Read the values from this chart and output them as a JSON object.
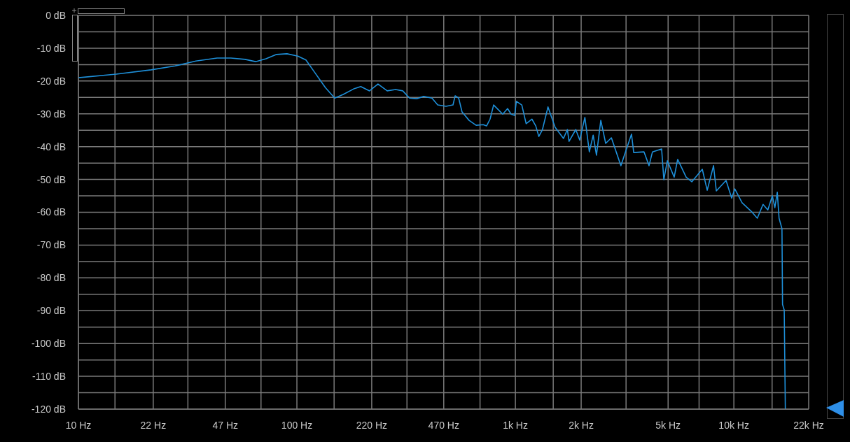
{
  "chart_data": {
    "type": "line",
    "log": "x",
    "grid": true,
    "marker": "none",
    "line_style": "solid",
    "color": "#1e8fd8",
    "x": [
      10,
      14.9,
      21.5,
      27.7,
      34.5,
      43.1,
      49.9,
      57.9,
      64.7,
      72.2,
      80.7,
      90.1,
      101,
      110,
      121,
      135,
      149,
      163,
      182,
      196,
      215,
      235,
      259,
      283,
      305,
      328,
      353,
      380,
      415,
      441,
      481,
      518,
      530,
      550,
      570,
      614,
      661,
      712,
      738,
      766,
      795,
      837,
      875,
      921,
      956,
      992,
      1010,
      1070,
      1120,
      1190,
      1240,
      1280,
      1330,
      1410,
      1520,
      1660,
      1730,
      1760,
      1890,
      1970,
      2080,
      2180,
      2270,
      2350,
      2460,
      2590,
      2750,
      3040,
      3400,
      3480,
      3880,
      4090,
      4240,
      4670,
      4780,
      4960,
      5330,
      5530,
      6050,
      6420,
      7170,
      7550,
      8070,
      8310,
      9210,
      9770,
      10100,
      10900,
      12000,
      12800,
      13600,
      14300,
      15000,
      15400,
      15800,
      16100,
      16600,
      16700,
      17000,
      17200
    ],
    "values": [
      -19.0,
      -17.9,
      -16.6,
      -15.4,
      -13.9,
      -13.0,
      -13.0,
      -13.4,
      -14.1,
      -13.2,
      -11.9,
      -11.7,
      -12.4,
      -13.6,
      -17.5,
      -22.0,
      -25.2,
      -24.1,
      -22.4,
      -21.7,
      -23.0,
      -20.9,
      -23.0,
      -22.6,
      -23.0,
      -25.2,
      -25.4,
      -24.7,
      -25.2,
      -27.3,
      -27.7,
      -27.3,
      -24.5,
      -25.2,
      -29.4,
      -32.0,
      -33.5,
      -33.3,
      -33.7,
      -31.6,
      -27.3,
      -28.8,
      -30.1,
      -28.4,
      -30.1,
      -30.5,
      -26.2,
      -27.3,
      -33.0,
      -31.6,
      -33.7,
      -36.9,
      -34.8,
      -27.9,
      -34.1,
      -37.5,
      -34.8,
      -38.4,
      -34.8,
      -38.0,
      -31.1,
      -41.6,
      -36.5,
      -42.6,
      -32.0,
      -39.0,
      -37.3,
      -45.8,
      -36.2,
      -41.8,
      -41.6,
      -45.8,
      -41.6,
      -40.7,
      -50.1,
      -44.3,
      -49.3,
      -43.9,
      -49.3,
      -50.7,
      -46.9,
      -53.3,
      -45.8,
      -53.5,
      -50.3,
      -55.7,
      -52.9,
      -57.1,
      -59.7,
      -61.8,
      -57.6,
      -59.3,
      -55.0,
      -58.6,
      -53.9,
      -61.8,
      -65.0,
      -88.1,
      -89.8,
      -120
    ],
    "xlim": [
      10,
      22000
    ],
    "xticks": [
      {
        "value": 10,
        "label": "10 Hz"
      },
      {
        "value": 14.7,
        "label": null
      },
      {
        "value": 22,
        "label": "22 Hz"
      },
      {
        "value": 31.7,
        "label": null
      },
      {
        "value": 47,
        "label": "47 Hz"
      },
      {
        "value": 68.5,
        "label": null
      },
      {
        "value": 100,
        "label": "100 Hz"
      },
      {
        "value": 148,
        "label": null
      },
      {
        "value": 220,
        "label": "220 Hz"
      },
      {
        "value": 319,
        "label": null
      },
      {
        "value": 470,
        "label": "470 Hz"
      },
      {
        "value": 689,
        "label": null
      },
      {
        "value": 1000,
        "label": "1k Hz"
      },
      {
        "value": 1490,
        "label": null
      },
      {
        "value": 2000,
        "label": "2k Hz"
      },
      {
        "value": 3210,
        "label": null
      },
      {
        "value": 5000,
        "label": "5k Hz"
      },
      {
        "value": 6930,
        "label": null
      },
      {
        "value": 10000,
        "label": "10k Hz"
      },
      {
        "value": 14960,
        "label": null
      },
      {
        "value": 22000,
        "label": "22k Hz"
      }
    ],
    "ylim": [
      -120,
      0
    ],
    "yticks": [
      {
        "value": 0,
        "label": "0 dB"
      },
      {
        "value": -5,
        "label": null
      },
      {
        "value": -10,
        "label": "-10 dB"
      },
      {
        "value": -15,
        "label": null
      },
      {
        "value": -20,
        "label": "-20 dB"
      },
      {
        "value": -25,
        "label": null
      },
      {
        "value": -30,
        "label": "-30 dB"
      },
      {
        "value": -35,
        "label": null
      },
      {
        "value": -40,
        "label": "-40 dB"
      },
      {
        "value": -45,
        "label": null
      },
      {
        "value": -50,
        "label": "-50 dB"
      },
      {
        "value": -55,
        "label": null
      },
      {
        "value": -60,
        "label": "-60 dB"
      },
      {
        "value": -65,
        "label": null
      },
      {
        "value": -70,
        "label": "-70 dB"
      },
      {
        "value": -75,
        "label": null
      },
      {
        "value": -80,
        "label": "-80 dB"
      },
      {
        "value": -85,
        "label": null
      },
      {
        "value": -90,
        "label": "-90 dB"
      },
      {
        "value": -95,
        "label": null
      },
      {
        "value": -100,
        "label": "-100 dB"
      },
      {
        "value": -105,
        "label": null
      },
      {
        "value": -110,
        "label": "-110 dB"
      },
      {
        "value": -115,
        "label": null
      },
      {
        "value": -120,
        "label": "-120 dB"
      }
    ]
  }
}
